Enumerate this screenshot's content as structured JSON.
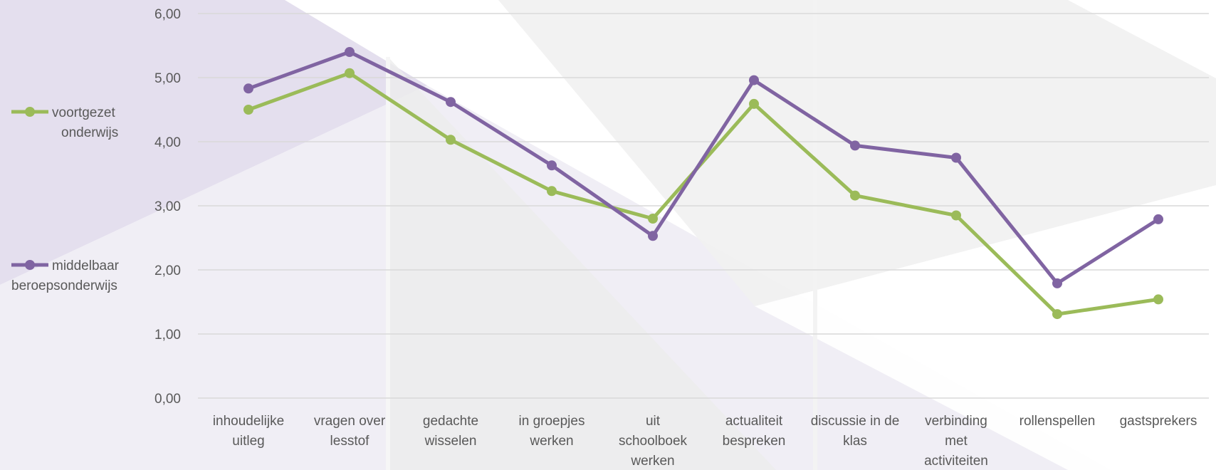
{
  "chart_data": {
    "type": "line",
    "title": "",
    "xlabel": "",
    "ylabel": "",
    "ylim": [
      0,
      6
    ],
    "yticks": [
      "0,00",
      "1,00",
      "2,00",
      "3,00",
      "4,00",
      "5,00",
      "6,00"
    ],
    "categories": [
      [
        "inhoudelijke",
        "uitleg"
      ],
      [
        "vragen over",
        "lesstof"
      ],
      [
        "gedachte",
        "wisselen"
      ],
      [
        "in groepjes",
        "werken"
      ],
      [
        "uit",
        "schoolboek",
        "werken"
      ],
      [
        "actualiteit",
        "bespreken"
      ],
      [
        "discussie in de",
        "klas"
      ],
      [
        "verbinding",
        "met",
        "activiteiten"
      ],
      [
        "rollenspellen"
      ],
      [
        "gastsprekers"
      ]
    ],
    "series": [
      {
        "name": [
          "voortgezet",
          "onderwijs"
        ],
        "color": "#9bbb59",
        "values": [
          4.5,
          5.07,
          4.03,
          3.23,
          2.8,
          4.59,
          3.16,
          2.85,
          1.31,
          1.54
        ]
      },
      {
        "name": [
          "middelbaar",
          "beroepsonderwijs"
        ],
        "color": "#8064a2",
        "values": [
          4.83,
          5.4,
          4.62,
          3.63,
          2.53,
          4.96,
          3.94,
          3.75,
          1.79,
          2.79
        ]
      }
    ],
    "grid": true,
    "legend": "left",
    "colors": {
      "grid": "#d9d9d9",
      "text": "#595959",
      "background_purple": "#e6e1ef",
      "background_gray": "#eeeeee"
    }
  }
}
